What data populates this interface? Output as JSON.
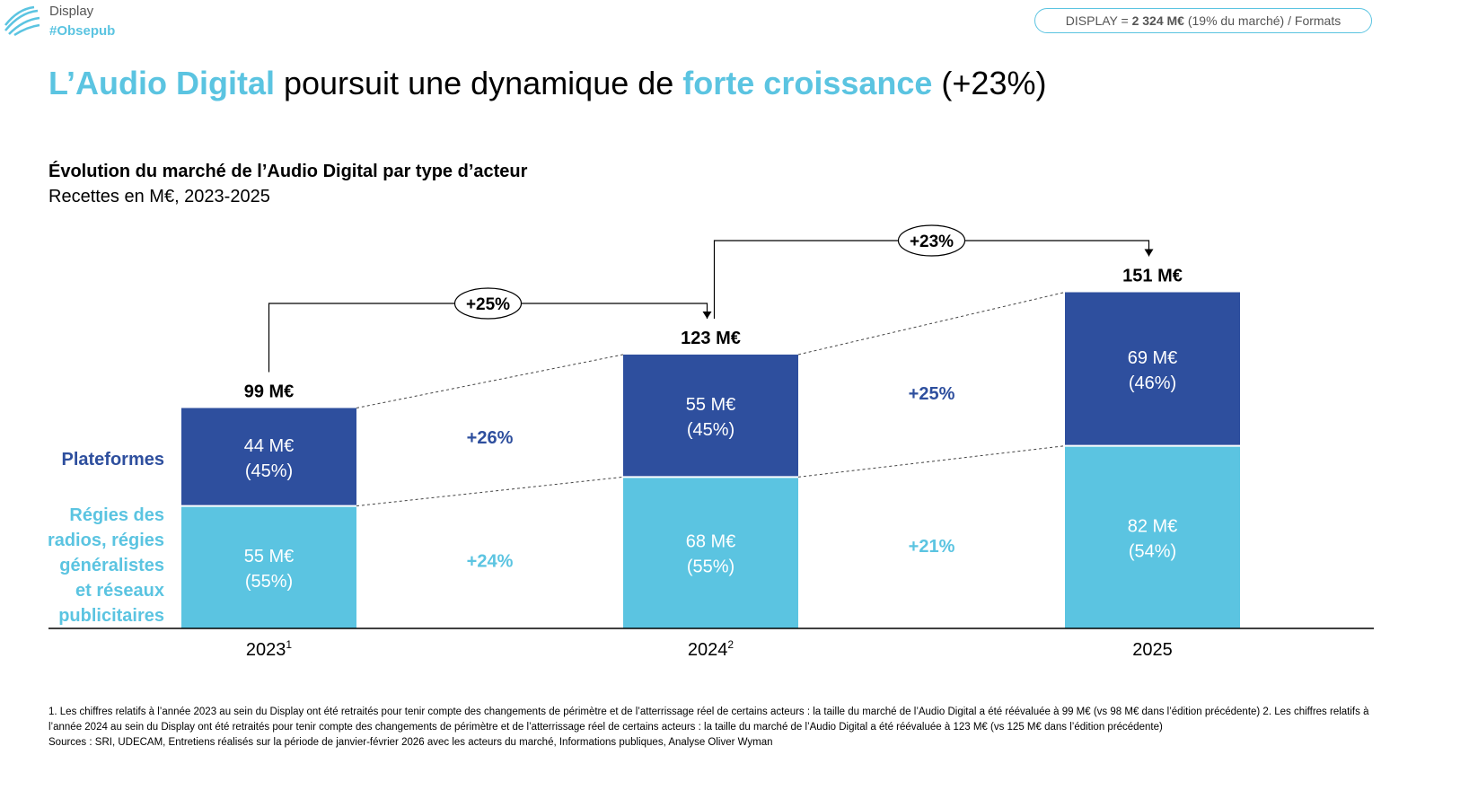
{
  "header": {
    "logo_line1": "Display",
    "logo_line2": "#Obsepub",
    "pill_prefix": "DISPLAY = ",
    "pill_bold": "2 324 M€",
    "pill_suffix": " (19% du marché) / Formats"
  },
  "title": {
    "part1": "L’Audio Digital",
    "part2": " poursuit une dynamique de ",
    "part3": "forte croissance",
    "part4": " (+23%)"
  },
  "chart_data": {
    "type": "bar",
    "title": "Évolution du marché de l’Audio Digital par type d’acteur",
    "subtitle": "Recettes en M€, 2023-2025",
    "categories": [
      "2023",
      "2024",
      "2025"
    ],
    "category_superscripts": [
      "1",
      "2",
      ""
    ],
    "totals": [
      "99 M€",
      "123 M€",
      "151 M€"
    ],
    "total_values": [
      99,
      123,
      151
    ],
    "series": [
      {
        "name": "Régies des radios, régies généralistes et réseaux publicitaires",
        "color": "#5bc4e1",
        "values": [
          55,
          68,
          82
        ],
        "labels": [
          "55 M€",
          "68 M€",
          "82 M€"
        ],
        "shares": [
          "(55%)",
          "(55%)",
          "(54%)"
        ],
        "growth": [
          "+24%",
          "+21%"
        ]
      },
      {
        "name": "Plateformes",
        "color": "#2e4f9e",
        "values": [
          44,
          55,
          69
        ],
        "labels": [
          "44 M€",
          "55 M€",
          "69 M€"
        ],
        "shares": [
          "(45%)",
          "(45%)",
          "(46%)"
        ],
        "growth": [
          "+26%",
          "+25%"
        ]
      }
    ],
    "total_growth": [
      "+25%",
      "+23%"
    ],
    "ylim": [
      0,
      151
    ]
  },
  "footnotes": {
    "note": "1. Les chiffres relatifs à l’année 2023 au sein du Display ont été retraités pour tenir compte des changements de périmètre et de l’atterrissage réel de certains acteurs : la taille du marché de l’Audio Digital a été réévaluée à 99 M€ (vs 98 M€ dans l’édition précédente) 2. Les chiffres relatifs à l’année 2024 au sein du Display ont été retraités pour tenir compte des changements de périmètre et de l’atterrissage réel de certains acteurs : la taille du marché de l’Audio Digital a été réévaluée à 123 M€ (vs 125 M€ dans l’édition précédente)",
    "sources": "Sources : SRI, UDECAM, Entretiens réalisés sur la période de janvier-février 2026 avec les acteurs du marché, Informations publiques, Analyse Oliver Wyman"
  }
}
